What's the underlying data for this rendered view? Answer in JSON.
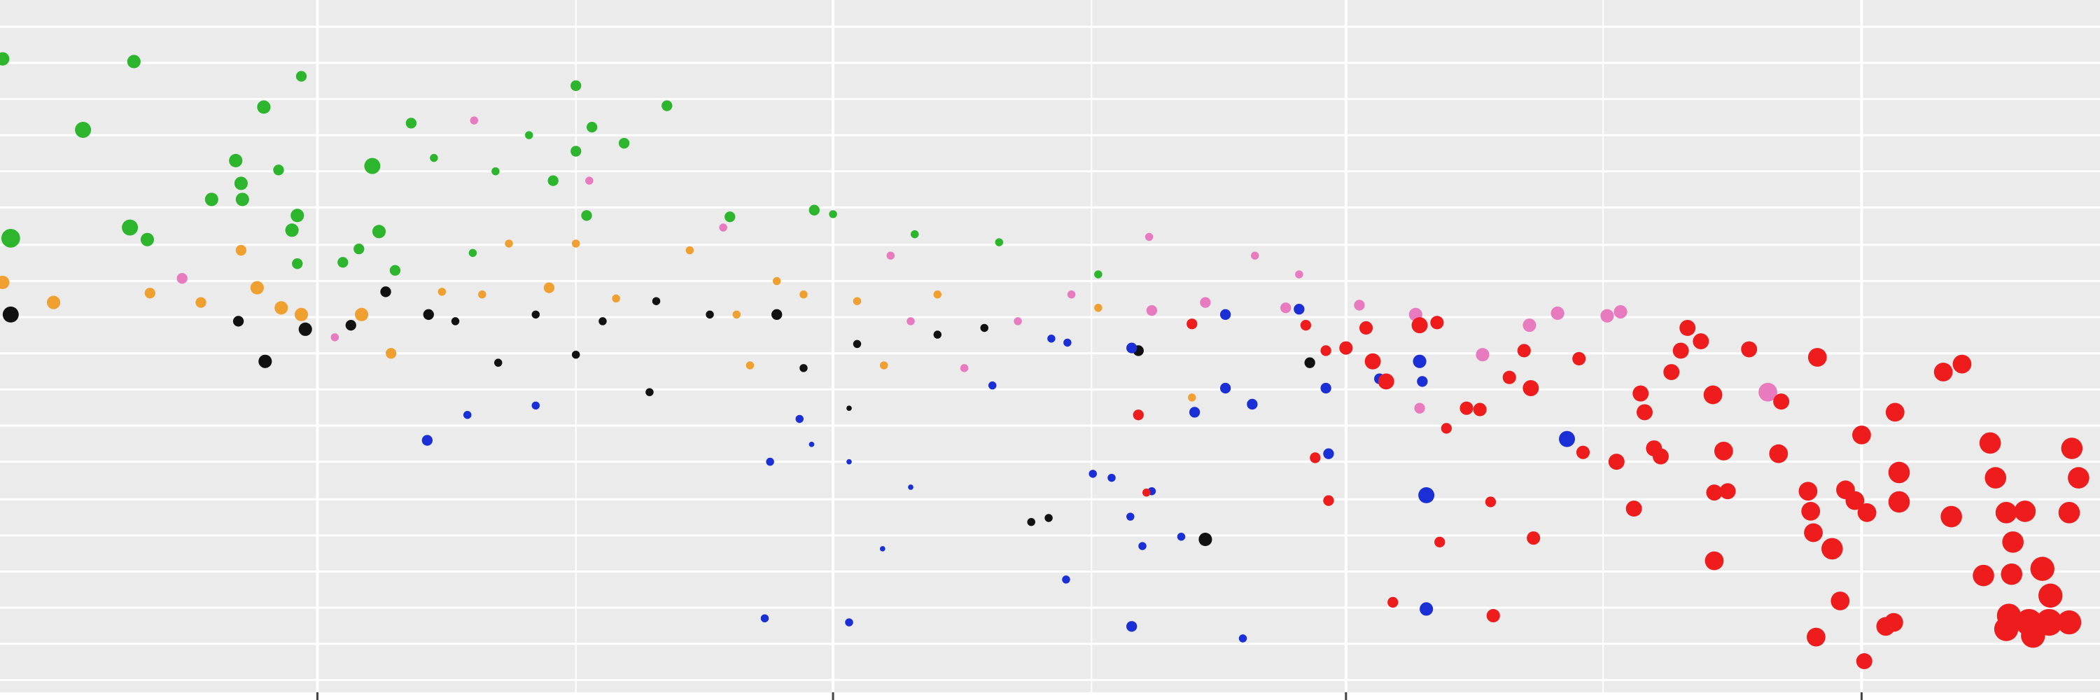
{
  "chart_data": {
    "type": "scatter",
    "xlim": [
      0,
      1568
    ],
    "ylim": [
      0,
      523
    ],
    "xticks": [
      237,
      622,
      1005,
      1390
    ],
    "xminor": [
      430,
      815,
      1197
    ],
    "yticks": [
      15,
      42,
      69,
      96,
      123,
      150,
      178,
      205,
      232,
      259,
      286,
      313,
      340,
      368,
      395,
      422,
      449,
      476,
      503
    ],
    "grid": true,
    "series": [
      {
        "color": "#2db52d",
        "x": [
          2,
          100,
          62,
          8,
          97,
          110,
          197,
          225,
          176,
          180,
          158,
          181,
          208,
          222,
          218,
          222,
          278,
          307,
          283,
          268,
          256,
          430,
          498,
          466,
          442,
          395,
          430,
          413,
          438,
          370,
          324,
          545,
          608,
          622,
          683,
          746,
          820,
          353,
          295
        ],
        "values": [
          479,
          477,
          426,
          345,
          353,
          344,
          443,
          466,
          403,
          386,
          374,
          374,
          396,
          362,
          351,
          326,
          399,
          431,
          350,
          337,
          327,
          459,
          444,
          416,
          428,
          422,
          410,
          388,
          362,
          395,
          405,
          361,
          366,
          363,
          348,
          342,
          318,
          334,
          321
        ],
        "sizes": [
          5,
          5,
          6,
          7,
          6,
          5,
          5,
          4,
          5,
          5,
          5,
          5,
          4,
          5,
          5,
          4,
          6,
          4,
          5,
          4,
          4,
          4,
          4,
          4,
          4,
          3,
          4,
          4,
          4,
          3,
          3,
          4,
          4,
          3,
          3,
          3,
          3,
          3,
          4
        ]
      },
      {
        "color": "#f0a030",
        "x": [
          2,
          40,
          112,
          180,
          150,
          192,
          210,
          225,
          270,
          292,
          330,
          380,
          410,
          430,
          460,
          515,
          550,
          580,
          600,
          640,
          660,
          700,
          560,
          890,
          820,
          360
        ],
        "values": [
          312,
          297,
          304,
          336,
          297,
          308,
          293,
          288,
          288,
          259,
          305,
          341,
          308,
          341,
          300,
          336,
          288,
          313,
          303,
          298,
          250,
          303,
          250,
          226,
          293,
          303
        ],
        "sizes": [
          5,
          5,
          4,
          4,
          4,
          5,
          5,
          5,
          5,
          4,
          3,
          3,
          4,
          3,
          3,
          3,
          3,
          3,
          3,
          3,
          3,
          3,
          3,
          3,
          3,
          3
        ]
      },
      {
        "color": "#111111",
        "x": [
          8,
          198,
          228,
          178,
          288,
          262,
          320,
          372,
          430,
          485,
          400,
          450,
          490,
          530,
          580,
          600,
          640,
          700,
          735,
          770,
          783,
          850,
          900,
          978,
          340,
          634
        ],
        "values": [
          288,
          253,
          277,
          283,
          305,
          280,
          288,
          252,
          258,
          230,
          288,
          283,
          298,
          288,
          288,
          248,
          266,
          273,
          278,
          133,
          136,
          261,
          120,
          252,
          283,
          218
        ],
        "sizes": [
          6,
          5,
          5,
          4,
          4,
          4,
          4,
          3,
          3,
          3,
          3,
          3,
          3,
          3,
          4,
          3,
          3,
          3,
          3,
          3,
          3,
          4,
          5,
          4,
          3,
          2
        ]
      },
      {
        "color": "#e87ac0",
        "x": [
          136,
          250,
          354,
          440,
          665,
          680,
          720,
          760,
          800,
          858,
          860,
          900,
          937,
          960,
          970,
          1015,
          1057,
          1107,
          1142,
          1163,
          1200,
          1210,
          1320,
          1060,
          540
        ],
        "values": [
          315,
          271,
          433,
          388,
          332,
          283,
          248,
          283,
          303,
          346,
          291,
          297,
          332,
          293,
          318,
          295,
          288,
          258,
          280,
          289,
          287,
          290,
          230,
          218,
          353
        ],
        "sizes": [
          4,
          3,
          3,
          3,
          3,
          3,
          3,
          3,
          3,
          3,
          4,
          4,
          3,
          4,
          3,
          4,
          5,
          5,
          5,
          5,
          5,
          5,
          7,
          4,
          3
        ]
      },
      {
        "color": "#1a2fd6",
        "x": [
          319,
          349,
          400,
          575,
          597,
          606,
          634,
          680,
          659,
          571,
          634,
          741,
          785,
          797,
          816,
          830,
          844,
          853,
          860,
          882,
          796,
          845,
          928,
          892,
          915,
          935,
          990,
          992,
          1030,
          1060,
          1065,
          1065,
          1170,
          1062,
          970,
          915,
          845
        ],
        "values": [
          194,
          213,
          220,
          178,
          210,
          191,
          178,
          159,
          113,
          61,
          58,
          235,
          270,
          267,
          169,
          166,
          137,
          115,
          156,
          122,
          90,
          55,
          46,
          215,
          233,
          221,
          233,
          184,
          240,
          253,
          153,
          68,
          195,
          238,
          292,
          288,
          263
        ],
        "sizes": [
          4,
          3,
          3,
          3,
          3,
          2,
          2,
          2,
          2,
          3,
          3,
          3,
          3,
          3,
          3,
          3,
          3,
          3,
          3,
          3,
          3,
          4,
          3,
          4,
          4,
          4,
          4,
          4,
          4,
          5,
          6,
          5,
          6,
          4,
          4,
          4,
          4
        ]
      },
      {
        "color": "#ee1c1c",
        "x": [
          850,
          856,
          890,
          975,
          990,
          982,
          992,
          1005,
          1020,
          1025,
          1035,
          1060,
          1073,
          1075,
          1080,
          1095,
          1105,
          1040,
          1113,
          1115,
          1127,
          1143,
          1145,
          1138,
          1179,
          1182,
          1207,
          1220,
          1225,
          1228,
          1235,
          1240,
          1248,
          1255,
          1260,
          1270,
          1280,
          1280,
          1290,
          1287,
          1279,
          1306,
          1328,
          1330,
          1357,
          1350,
          1352,
          1354,
          1356,
          1368,
          1378,
          1385,
          1390,
          1394,
          1374,
          1392,
          1408,
          1414,
          1415,
          1418,
          1418,
          1451,
          1465,
          1457,
          1486,
          1490,
          1481,
          1498,
          1503,
          1502,
          1512,
          1525,
          1531,
          1545,
          1547,
          1552,
          1500,
          1515,
          1530,
          1518,
          1545,
          1498
        ],
        "values": [
          213,
          155,
          281,
          280,
          261,
          181,
          149,
          263,
          278,
          253,
          238,
          280,
          282,
          118,
          203,
          218,
          217,
          73,
          148,
          63,
          241,
          233,
          121,
          261,
          255,
          185,
          178,
          143,
          229,
          215,
          188,
          182,
          245,
          261,
          278,
          268,
          104,
          155,
          156,
          186,
          228,
          262,
          184,
          223,
          256,
          156,
          141,
          125,
          47,
          113,
          157,
          149,
          198,
          140,
          74,
          29,
          55,
          58,
          215,
          170,
          148,
          245,
          251,
          137,
          192,
          166,
          93,
          140,
          118,
          94,
          141,
          98,
          78,
          140,
          188,
          166,
          63,
          58,
          58,
          48,
          58,
          53
        ],
        "sizes": [
          4,
          3,
          4,
          4,
          4,
          4,
          4,
          5,
          5,
          6,
          6,
          6,
          5,
          4,
          4,
          5,
          5,
          4,
          4,
          5,
          5,
          6,
          5,
          5,
          5,
          5,
          6,
          6,
          6,
          6,
          6,
          6,
          6,
          6,
          6,
          6,
          7,
          6,
          6,
          7,
          7,
          6,
          7,
          6,
          7,
          7,
          7,
          7,
          7,
          8,
          7,
          7,
          7,
          7,
          7,
          6,
          7,
          7,
          7,
          8,
          8,
          7,
          7,
          8,
          8,
          8,
          8,
          8,
          8,
          8,
          8,
          9,
          9,
          8,
          8,
          8,
          9,
          10,
          10,
          9,
          9,
          9
        ]
      }
    ]
  }
}
